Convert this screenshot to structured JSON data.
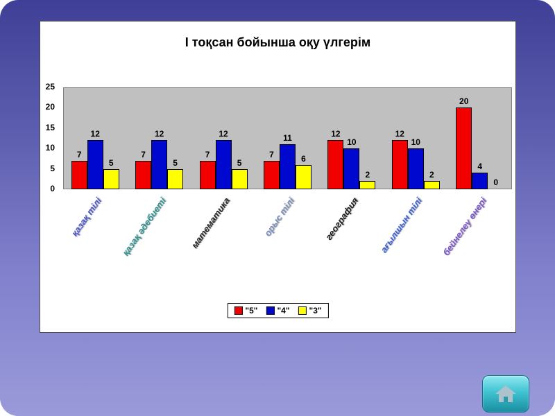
{
  "slide": {
    "background_top_color": "#3f3f97",
    "background_bottom_color": "#9a9ada",
    "panel_background": "#ffffff"
  },
  "chart_data": {
    "type": "bar",
    "title": "І тоқсан бойынша оқу үлгерім",
    "categories": [
      "қазақ тілі",
      "қазақ әдебиеті",
      "математика",
      "орыс тілі",
      "география",
      "ағылшын тілі",
      "бейнелеу өнері"
    ],
    "category_colors": [
      "#4a55c8",
      "#2f9090",
      "#222222",
      "#7a8fb8",
      "#1a1a1a",
      "#3a5fd0",
      "#7a55c8"
    ],
    "series": [
      {
        "name": "\"5\"",
        "color": "#f20000",
        "values": [
          7,
          7,
          7,
          7,
          12,
          12,
          20
        ]
      },
      {
        "name": "\"4\"",
        "color": "#0008d0",
        "values": [
          12,
          12,
          12,
          11,
          10,
          10,
          4
        ]
      },
      {
        "name": "\"3\"",
        "color": "#ffff00",
        "values": [
          5,
          5,
          5,
          6,
          2,
          2,
          0
        ]
      }
    ],
    "ylim": [
      0,
      25
    ],
    "yticks": [
      0,
      5,
      10,
      15,
      20,
      25
    ],
    "legend_position": "bottom",
    "plot_background": "#c0c0c0",
    "grid": false
  },
  "icons": {
    "home": "house-icon"
  }
}
